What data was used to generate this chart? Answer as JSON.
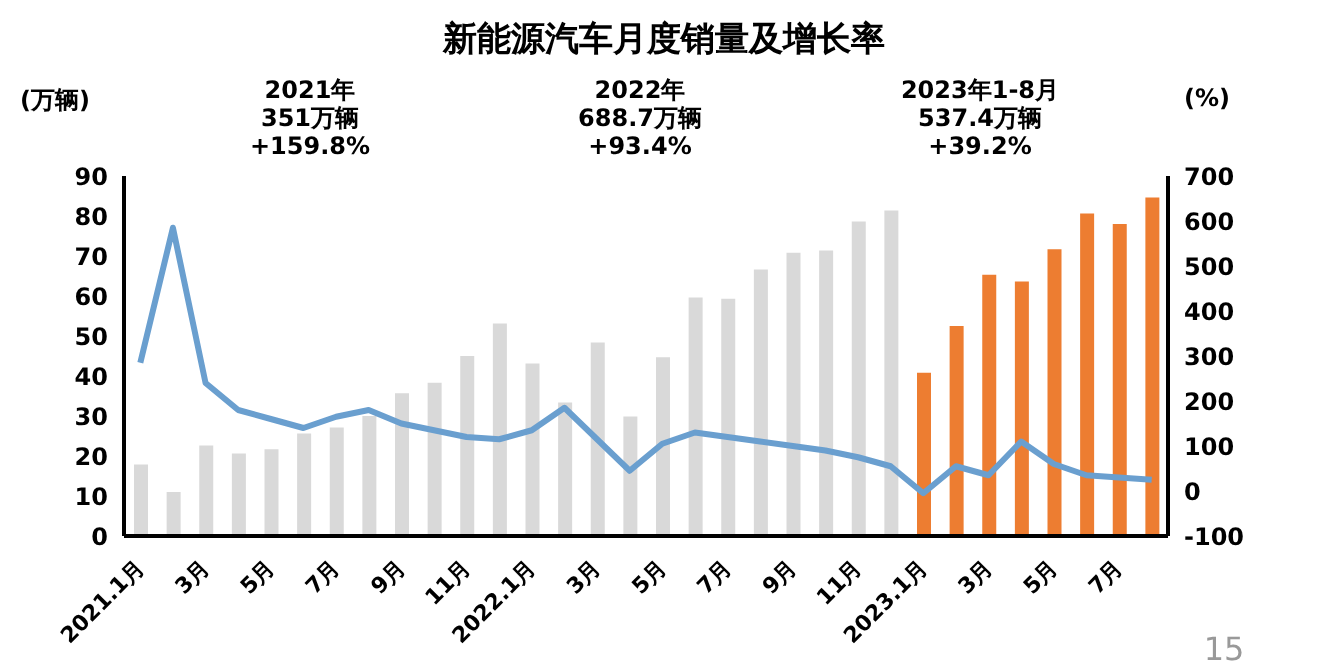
{
  "chart_data": {
    "type": "bar",
    "title": "新能源汽车月度销量及增长率",
    "ylabel": "(万辆)",
    "y2label": "(%)",
    "categories": [
      "2021.1月",
      null,
      "3月",
      null,
      "5月",
      null,
      "7月",
      null,
      "9月",
      null,
      "11月",
      null,
      "2022.1月",
      null,
      "3月",
      null,
      "5月",
      null,
      "7月",
      null,
      "9月",
      null,
      "11月",
      null,
      "2023.1月",
      null,
      "3月",
      null,
      "5月",
      null,
      "7月",
      null
    ],
    "series": [
      {
        "colors": [
          "#d9d9d9",
          "#d9d9d9",
          "#d9d9d9",
          "#d9d9d9",
          "#d9d9d9",
          "#d9d9d9",
          "#d9d9d9",
          "#d9d9d9",
          "#d9d9d9",
          "#d9d9d9",
          "#d9d9d9",
          "#d9d9d9",
          "#d9d9d9",
          "#d9d9d9",
          "#d9d9d9",
          "#d9d9d9",
          "#d9d9d9",
          "#d9d9d9",
          "#d9d9d9",
          "#d9d9d9",
          "#d9d9d9",
          "#d9d9d9",
          "#d9d9d9",
          "#d9d9d9",
          "#ed7d31",
          "#ed7d31",
          "#ed7d31",
          "#ed7d31",
          "#ed7d31",
          "#ed7d31",
          "#ed7d31",
          "#ed7d31"
        ],
        "values": [
          17.9,
          11,
          22.6,
          20.6,
          21.7,
          25.6,
          27.1,
          30,
          35.7,
          38.3,
          45,
          53.1,
          43.1,
          33.4,
          48.4,
          29.9,
          44.7,
          59.6,
          59.3,
          66.6,
          70.8,
          71.4,
          78.6,
          81.4,
          40.8,
          52.5,
          65.3,
          63.6,
          71.7,
          80.6,
          78,
          84.6
        ]
      },
      {
        "type": "line",
        "axis": "y2",
        "color": "#6a9fcf",
        "values": [
          285,
          585,
          240,
          180,
          160,
          140,
          165,
          180,
          150,
          135,
          120,
          115,
          135,
          185,
          115,
          45,
          105,
          130,
          120,
          110,
          100,
          90,
          75,
          55,
          -5,
          55,
          35,
          110,
          60,
          35,
          30,
          25
        ]
      }
    ],
    "ylim": [
      0,
      90
    ],
    "yticks": [
      0,
      10,
      20,
      30,
      40,
      50,
      60,
      70,
      80,
      90
    ],
    "y2lim": [
      -100,
      700
    ],
    "y2ticks": [
      -100,
      0,
      100,
      200,
      300,
      400,
      500,
      600,
      700
    ],
    "marker": "none",
    "line_style": "solid",
    "annotations": [
      "2021年\n351万辆\n+159.8%",
      "2022年\n688.7万辆\n+93.4%",
      "2023年1-8月\n537.4万辆\n+39.2%",
      "15"
    ]
  }
}
